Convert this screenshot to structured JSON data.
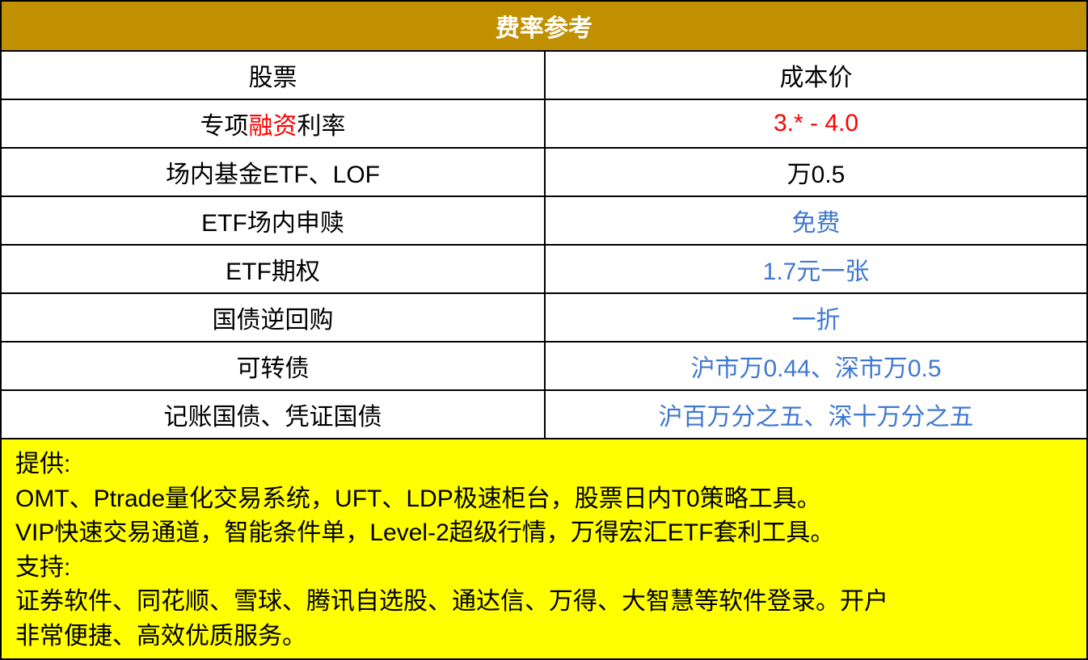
{
  "title": "费率参考",
  "header": {
    "col1": "股票",
    "col2": "成本价"
  },
  "rows": [
    {
      "label_parts": [
        "专项",
        "融资",
        "利率"
      ],
      "value": "3.* - 4.0",
      "value_color": "#ff0000"
    },
    {
      "label": "场内基金ETF、LOF",
      "value": "万0.5",
      "value_color": "#000000"
    },
    {
      "label": "ETF场内申赎",
      "value": "免费",
      "value_color": "#3f78d0"
    },
    {
      "label": "ETF期权",
      "value": "1.7元一张",
      "value_color": "#3f78d0"
    },
    {
      "label": "国债逆回购",
      "value": "一折",
      "value_color": "#3f78d0"
    },
    {
      "label": "可转债",
      "value": "沪市万0.44、深市万0.5",
      "value_color": "#3f78d0"
    },
    {
      "label": "记账国债、凭证国债",
      "value": "沪百万分之五、深十万分之五",
      "value_color": "#3f78d0"
    }
  ],
  "footer": {
    "lines": [
      "提供:",
      "OMT、Ptrade量化交易系统，UFT、LDP极速柜台，股票日内T0策略工具。",
      "VIP快速交易通道，智能条件单，Level-2超级行情，万得宏汇ETF套利工具。",
      "支持:",
      "证券软件、同花顺、雪球、腾讯自选股、通达信、万得、大智慧等软件登录。开户",
      "非常便捷、高效优质服务。"
    ]
  },
  "colors": {
    "title_bg": "#c09000",
    "footer_bg": "#ffff00",
    "accent_red": "#ff0000",
    "accent_blue": "#3f78d0"
  }
}
